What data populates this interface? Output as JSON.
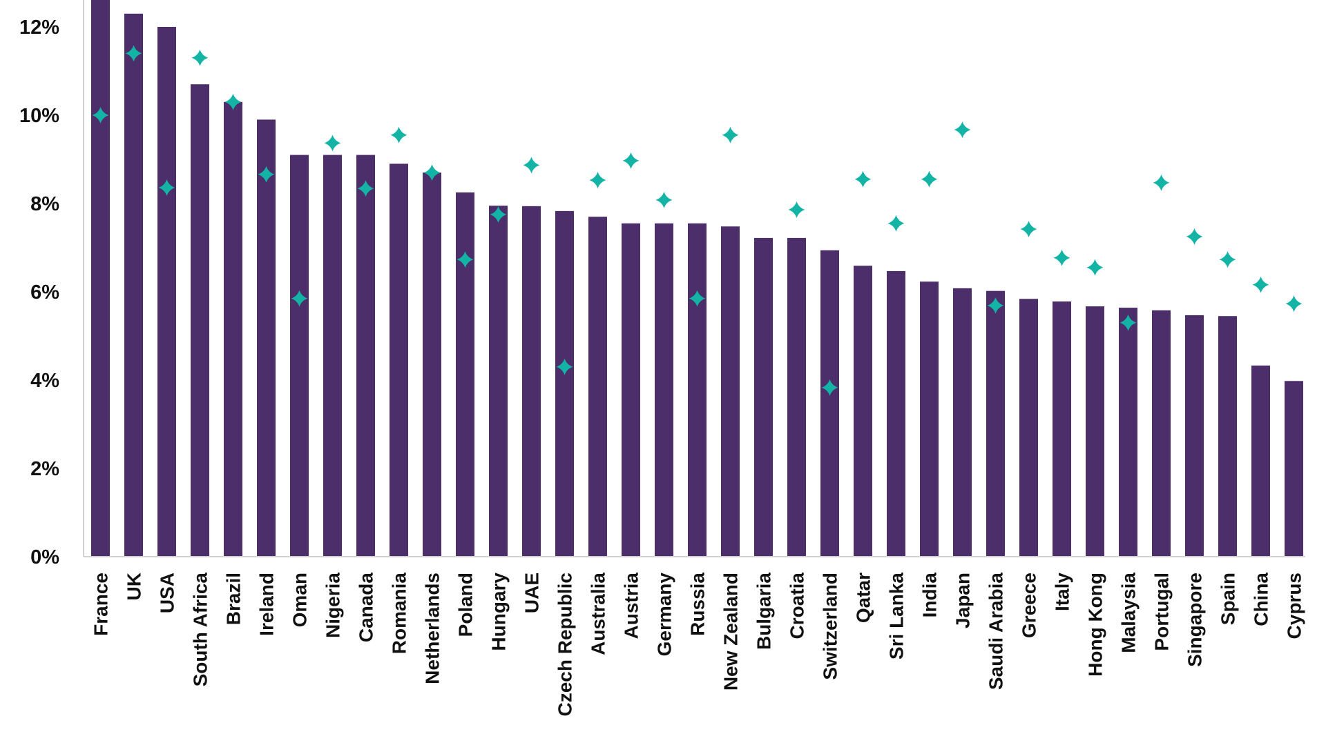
{
  "chart_data": {
    "type": "bar",
    "title": "",
    "xlabel": "",
    "ylabel": "",
    "ylim": [
      0,
      12.6
    ],
    "yticks": [
      "0%",
      "2%",
      "4%",
      "6%",
      "8%",
      "10%",
      "12%"
    ],
    "ytick_values": [
      0,
      2,
      4,
      6,
      8,
      10,
      12
    ],
    "grid": false,
    "legend": "none",
    "colors": {
      "bar": "#4b2e6a",
      "marker": "#13b3a6",
      "axis": "#d0d0d0",
      "text": "#111111"
    },
    "categories": [
      "France",
      "UK",
      "USA",
      "South Africa",
      "Brazil",
      "Ireland",
      "Oman",
      "Nigeria",
      "Canada",
      "Romania",
      "Netherlands",
      "Poland",
      "Hungary",
      "UAE",
      "Czech Republic",
      "Australia",
      "Austria",
      "Germany",
      "Russia",
      "New Zealand",
      "Bulgaria",
      "Croatia",
      "Switzerland",
      "Qatar",
      "Sri Lanka",
      "India",
      "Japan",
      "Saudi Arabia",
      "Greece",
      "Italy",
      "Hong Kong",
      "Malaysia",
      "Portugal",
      "Singapore",
      "Spain",
      "China",
      "Cyprus"
    ],
    "series": [
      {
        "name": "bars",
        "kind": "bar",
        "values": [
          12.8,
          12.3,
          12.0,
          10.7,
          10.3,
          9.9,
          9.1,
          9.1,
          9.1,
          8.9,
          8.7,
          8.25,
          7.95,
          7.94,
          7.83,
          7.7,
          7.55,
          7.55,
          7.55,
          7.48,
          7.22,
          7.22,
          6.94,
          6.59,
          6.47,
          6.23,
          6.08,
          6.02,
          5.84,
          5.78,
          5.67,
          5.64,
          5.58,
          5.47,
          5.45,
          4.33,
          3.98
        ]
      },
      {
        "name": "markers",
        "kind": "scatter",
        "marker": "diamond",
        "values": [
          10.0,
          11.4,
          8.36,
          11.3,
          10.3,
          8.66,
          5.85,
          9.37,
          8.34,
          9.55,
          8.7,
          6.73,
          7.75,
          8.87,
          4.3,
          8.53,
          8.97,
          8.08,
          5.85,
          9.55,
          null,
          7.86,
          3.83,
          8.55,
          7.55,
          8.55,
          9.67,
          5.69,
          7.42,
          6.77,
          6.55,
          5.3,
          8.47,
          7.25,
          6.73,
          6.16,
          5.73
        ]
      }
    ]
  }
}
